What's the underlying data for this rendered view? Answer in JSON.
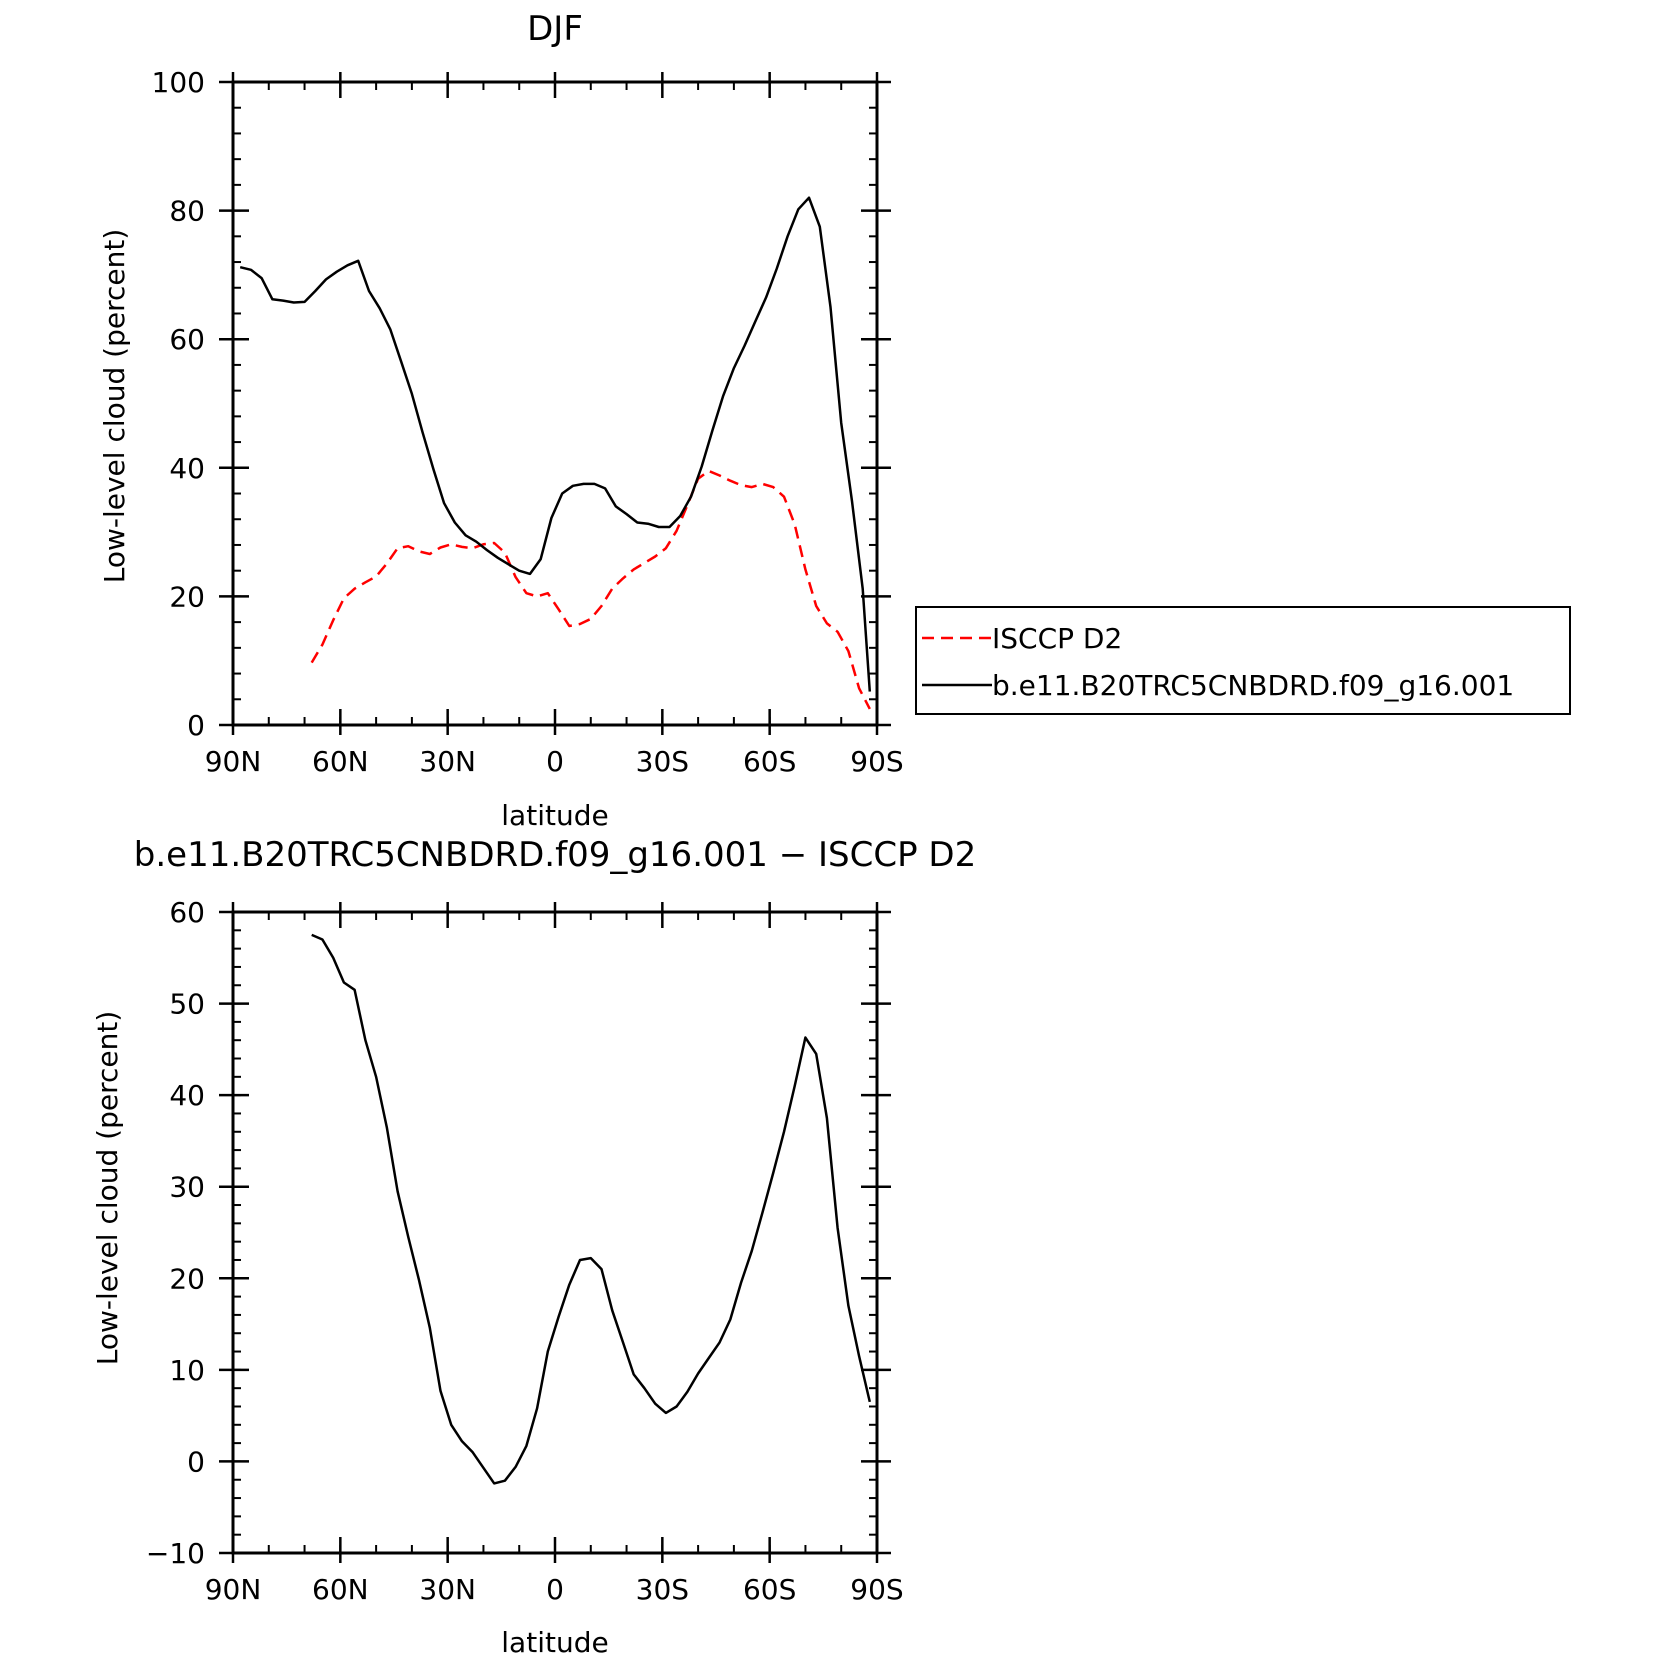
{
  "chart_data": [
    {
      "type": "line",
      "title": "DJF",
      "xlabel": "latitude",
      "ylabel": "Low-level cloud (percent)",
      "xlim": [
        90,
        -90
      ],
      "ylim": [
        0,
        100
      ],
      "x_ticks": [
        {
          "value": 90,
          "label": "90N"
        },
        {
          "value": 60,
          "label": "60N"
        },
        {
          "value": 30,
          "label": "30N"
        },
        {
          "value": 0,
          "label": "0"
        },
        {
          "value": -30,
          "label": "30S"
        },
        {
          "value": -60,
          "label": "60S"
        },
        {
          "value": -90,
          "label": "90S"
        }
      ],
      "y_ticks": [
        {
          "value": 0,
          "label": "0"
        },
        {
          "value": 20,
          "label": "20"
        },
        {
          "value": 40,
          "label": "40"
        },
        {
          "value": 60,
          "label": "60"
        },
        {
          "value": 80,
          "label": "80"
        },
        {
          "value": 100,
          "label": "100"
        }
      ],
      "legend": {
        "position": "right"
      },
      "series": [
        {
          "name": "ISCCP D2",
          "color": "#ff0000",
          "dash": true,
          "x": [
            68,
            65,
            62,
            59,
            56,
            53,
            50,
            47,
            44,
            41,
            38,
            35,
            32,
            29,
            26,
            23,
            20,
            17,
            14,
            11,
            8,
            5,
            2,
            -1,
            -4,
            -7,
            -10,
            -13,
            -16,
            -19,
            -22,
            -25,
            -28,
            -31,
            -34,
            -37,
            -40,
            -43,
            -46,
            -49,
            -52,
            -55,
            -58,
            -61,
            -64,
            -67,
            -70,
            -73,
            -76,
            -79,
            -82,
            -85,
            -88
          ],
          "y": [
            9.7,
            12.5,
            16.3,
            19.7,
            21.2,
            22.2,
            23.1,
            25.1,
            27.5,
            27.8,
            27.0,
            26.6,
            27.6,
            28.1,
            27.7,
            27.5,
            28.1,
            28.3,
            26.8,
            23.0,
            20.5,
            20.0,
            20.5,
            18.0,
            15.4,
            15.7,
            16.5,
            18.5,
            21.2,
            22.8,
            24.2,
            25.2,
            26.2,
            27.5,
            30.2,
            34.2,
            38.3,
            39.5,
            38.8,
            38.0,
            37.3,
            37.0,
            37.5,
            37.0,
            35.5,
            31.2,
            24.2,
            18.5,
            15.8,
            14.5,
            11.5,
            5.7,
            2.5
          ]
        },
        {
          "name": "b.e11.B20TRC5CNBDRD.f09_g16.001",
          "color": "#000000",
          "dash": false,
          "x": [
            88,
            85,
            82,
            79,
            76,
            73,
            70,
            67,
            64,
            61,
            58,
            55,
            52,
            49,
            46,
            43,
            40,
            37,
            34,
            31,
            28,
            25,
            22,
            19,
            16,
            13,
            10,
            7,
            4,
            1,
            -2,
            -5,
            -8,
            -11,
            -14,
            -17,
            -20,
            -23,
            -26,
            -29,
            -32,
            -35,
            -38,
            -41,
            -44,
            -47,
            -50,
            -53,
            -56,
            -59,
            -62,
            -65,
            -68,
            -71,
            -74,
            -77,
            -80,
            -83,
            -86,
            -88
          ],
          "y": [
            71.2,
            70.8,
            69.5,
            66.2,
            66.0,
            65.7,
            65.8,
            67.5,
            69.3,
            70.5,
            71.5,
            72.2,
            67.5,
            64.8,
            61.5,
            56.5,
            51.5,
            45.5,
            39.8,
            34.5,
            31.5,
            29.5,
            28.5,
            27.2,
            26.0,
            25.0,
            24.0,
            23.5,
            25.8,
            32.2,
            36.0,
            37.2,
            37.5,
            37.5,
            36.8,
            34.0,
            32.8,
            31.5,
            31.3,
            30.8,
            30.8,
            32.5,
            35.5,
            40.2,
            45.8,
            51.2,
            55.5,
            59.0,
            62.8,
            66.5,
            71.0,
            76.0,
            80.2,
            82.0,
            77.5,
            65.0,
            47.0,
            34.8,
            21.2,
            5.2
          ]
        }
      ]
    },
    {
      "type": "line",
      "title": "b.e11.B20TRC5CNBDRD.f09_g16.001 − ISCCP D2",
      "xlabel": "latitude",
      "ylabel": "Low-level cloud (percent)",
      "xlim": [
        90,
        -90
      ],
      "ylim": [
        -10,
        60
      ],
      "x_ticks": [
        {
          "value": 90,
          "label": "90N"
        },
        {
          "value": 60,
          "label": "60N"
        },
        {
          "value": 30,
          "label": "30N"
        },
        {
          "value": 0,
          "label": "0"
        },
        {
          "value": -30,
          "label": "30S"
        },
        {
          "value": -60,
          "label": "60S"
        },
        {
          "value": -90,
          "label": "90S"
        }
      ],
      "y_ticks": [
        {
          "value": -10,
          "label": "−10"
        },
        {
          "value": 0,
          "label": "0"
        },
        {
          "value": 10,
          "label": "10"
        },
        {
          "value": 20,
          "label": "20"
        },
        {
          "value": 30,
          "label": "30"
        },
        {
          "value": 40,
          "label": "40"
        },
        {
          "value": 50,
          "label": "50"
        },
        {
          "value": 60,
          "label": "60"
        }
      ],
      "series": [
        {
          "color": "#000000",
          "dash": false,
          "x": [
            68,
            65,
            62,
            59,
            56,
            53,
            50,
            47,
            44,
            41,
            38,
            35,
            32,
            29,
            26,
            23,
            20,
            17,
            14,
            11,
            8,
            5,
            2,
            -1,
            -4,
            -7,
            -10,
            -13,
            -16,
            -19,
            -22,
            -25,
            -28,
            -31,
            -34,
            -37,
            -40,
            -43,
            -46,
            -49,
            -52,
            -55,
            -58,
            -61,
            -64,
            -67,
            -70,
            -73,
            -76,
            -79,
            -82,
            -85,
            -88
          ],
          "y": [
            57.5,
            57.0,
            55.0,
            52.3,
            51.5,
            46.0,
            42.0,
            36.5,
            29.5,
            24.5,
            19.8,
            14.6,
            7.7,
            4.0,
            2.2,
            1.0,
            -0.7,
            -2.4,
            -2.1,
            -0.6,
            1.7,
            5.8,
            12.0,
            15.8,
            19.3,
            22.0,
            22.2,
            21.0,
            16.5,
            13.0,
            9.5,
            8.0,
            6.3,
            5.3,
            6.0,
            7.6,
            9.6,
            11.3,
            13.0,
            15.5,
            19.5,
            23.0,
            27.2,
            31.5,
            36.0,
            41.0,
            46.3,
            44.5,
            37.5,
            25.5,
            17.0,
            11.5,
            6.5
          ]
        }
      ]
    }
  ]
}
